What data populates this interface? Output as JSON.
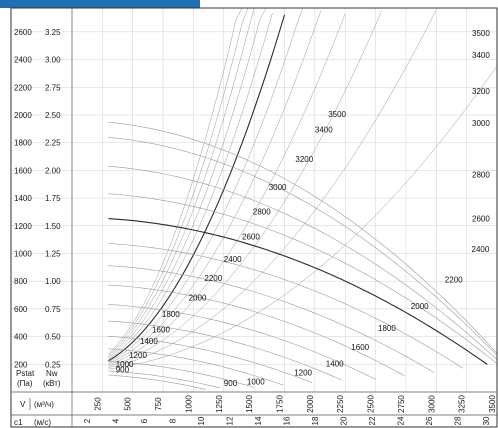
{
  "colors": {
    "header_bar": "#1f6fb5",
    "grid": "#d0d0d0",
    "border": "#333333",
    "curve": "#9a9a9a",
    "bold_curve": "#2b2b2b",
    "text": "#1a1a1a"
  },
  "chart_data": {
    "type": "line",
    "title": "",
    "grid": true,
    "y_axes": {
      "pressure": {
        "label": "Pstat",
        "unit": "(Па)",
        "ticks": [
          "200",
          "400",
          "600",
          "800",
          "1000",
          "1200",
          "1400",
          "1600",
          "1800",
          "2000",
          "2200",
          "2400",
          "2600"
        ]
      },
      "power": {
        "label": "Nw",
        "unit": "(кВт)",
        "ticks": [
          "0.25",
          "0.50",
          "0.75",
          "1.00",
          "1.25",
          "1.50",
          "1.75",
          "2.00",
          "2.25",
          "2.50",
          "2.75",
          "3.00",
          "3.25"
        ]
      }
    },
    "x_axes": {
      "flow": {
        "label": "V",
        "unit": "(м³/ч)",
        "ticks": [
          "250",
          "500",
          "750",
          "1000",
          "1250",
          "1500",
          "1750",
          "2000",
          "2250",
          "2500",
          "2750",
          "3000",
          "3250",
          "3500"
        ]
      },
      "velocity": {
        "label": "c1",
        "unit": "(м/с)",
        "ticks": [
          "2",
          "4",
          "6",
          "8",
          "10",
          "12",
          "14",
          "16",
          "18",
          "20",
          "22",
          "24",
          "26",
          "28",
          "30"
        ]
      }
    },
    "xlim": [
      0,
      3500
    ],
    "ylim": [
      0,
      2700
    ],
    "rpm_curves": [
      {
        "rpm": "900",
        "p0": 130,
        "xmax": 1100
      },
      {
        "rpm": "1000",
        "p0": 160,
        "xmax": 1250
      },
      {
        "rpm": "1200",
        "p0": 230,
        "xmax": 1500
      },
      {
        "rpm": "1400",
        "p0": 320,
        "xmax": 1750
      },
      {
        "rpm": "1600",
        "p0": 410,
        "xmax": 2000
      },
      {
        "rpm": "1800",
        "p0": 520,
        "xmax": 2250
      },
      {
        "rpm": "2000",
        "p0": 640,
        "xmax": 2500
      },
      {
        "rpm": "2200",
        "p0": 780,
        "xmax": 2750
      },
      {
        "rpm": "2400",
        "p0": 920,
        "xmax": 3000
      },
      {
        "rpm": "2600",
        "p0": 1080,
        "xmax": 3250
      },
      {
        "rpm": "2800",
        "p0": 1260,
        "xmax": 3450,
        "bold": true
      },
      {
        "rpm": "3000",
        "p0": 1440,
        "xmax": 3500
      },
      {
        "rpm": "3200",
        "p0": 1640,
        "xmax": 3500
      },
      {
        "rpm": "3400",
        "p0": 1850,
        "xmax": 3500
      },
      {
        "rpm": "3500",
        "p0": 1960,
        "xmax": 3500
      }
    ],
    "rpm_labels_left": [
      {
        "rpm": "900",
        "x": 360,
        "p": 140
      },
      {
        "rpm": "1000",
        "x": 360,
        "p": 182
      },
      {
        "rpm": "1200",
        "x": 470,
        "p": 245
      },
      {
        "rpm": "1400",
        "x": 560,
        "p": 345
      },
      {
        "rpm": "1600",
        "x": 660,
        "p": 430
      },
      {
        "rpm": "1800",
        "x": 740,
        "p": 540
      },
      {
        "rpm": "2000",
        "x": 960,
        "p": 660
      },
      {
        "rpm": "2200",
        "x": 1090,
        "p": 800
      },
      {
        "rpm": "2400",
        "x": 1250,
        "p": 940
      },
      {
        "rpm": "2600",
        "x": 1400,
        "p": 1100
      },
      {
        "rpm": "2800",
        "x": 1490,
        "p": 1280
      },
      {
        "rpm": "3000",
        "x": 1620,
        "p": 1460
      },
      {
        "rpm": "3200",
        "x": 1840,
        "p": 1660
      },
      {
        "rpm": "3400",
        "x": 2000,
        "p": 1875
      },
      {
        "rpm": "3500",
        "x": 2110,
        "p": 1985
      }
    ],
    "rpm_labels_right": [
      {
        "rpm": "900",
        "x": 1250,
        "p": 45
      },
      {
        "rpm": "1000",
        "x": 1440,
        "p": 55
      },
      {
        "rpm": "1200",
        "x": 1830,
        "p": 120
      },
      {
        "rpm": "1400",
        "x": 2090,
        "p": 185
      },
      {
        "rpm": "1600",
        "x": 2300,
        "p": 305
      },
      {
        "rpm": "1800",
        "x": 2520,
        "p": 440
      },
      {
        "rpm": "2000",
        "x": 2790,
        "p": 600
      },
      {
        "rpm": "2200",
        "x": 3070,
        "p": 790
      },
      {
        "rpm": "2400",
        "x": 3290,
        "p": 1010
      },
      {
        "rpm": "2600",
        "x": 3470,
        "p": 1230
      },
      {
        "rpm": "2800",
        "x": 3650,
        "p": 1550
      },
      {
        "rpm": "3000",
        "x": 3600,
        "p": 1920
      },
      {
        "rpm": "3200",
        "x": 3600,
        "p": 2150
      },
      {
        "rpm": "3400",
        "x": 3600,
        "p": 2410
      },
      {
        "rpm": "3500",
        "x": 3600,
        "p": 2570
      }
    ],
    "system_lines": {
      "count": 12,
      "bold_index": 6
    }
  }
}
